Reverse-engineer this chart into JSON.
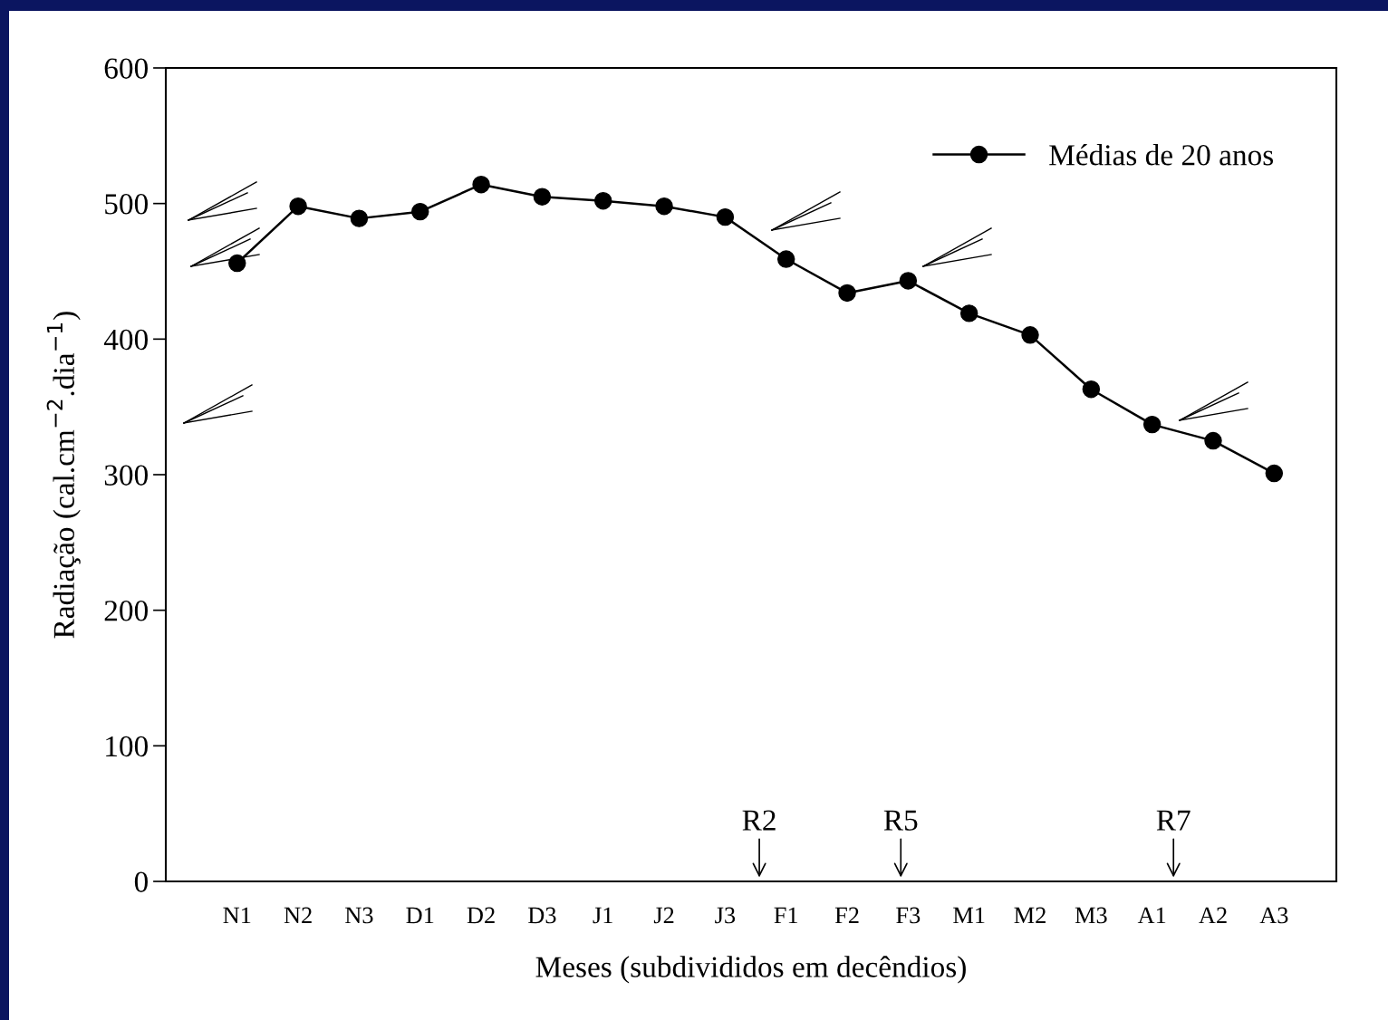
{
  "chart_data": {
    "type": "line",
    "xlabel": "Meses (subdivididos em decêndios)",
    "ylabel": "Radiação (cal.cm$^{−2}$.dia$^{−1}$)",
    "categories": [
      "N1",
      "N2",
      "N3",
      "D1",
      "D2",
      "D3",
      "J1",
      "J2",
      "J3",
      "F1",
      "F2",
      "F3",
      "M1",
      "M2",
      "M3",
      "A1",
      "A2",
      "A3"
    ],
    "series": [
      {
        "name": "Médias de 20 anos",
        "color": "#000000",
        "values": [
          456,
          498,
          489,
          494,
          514,
          505,
          502,
          498,
          490,
          459,
          434,
          443,
          419,
          403,
          363,
          337,
          325,
          301
        ]
      }
    ],
    "ylim": [
      0,
      600
    ],
    "yticks": [
      0,
      100,
      200,
      300,
      400,
      500,
      600
    ],
    "annotations": [
      "R2",
      "R5",
      "R7"
    ],
    "marker": "circle",
    "line_style": "solid",
    "legend": "top right",
    "grid": false
  }
}
